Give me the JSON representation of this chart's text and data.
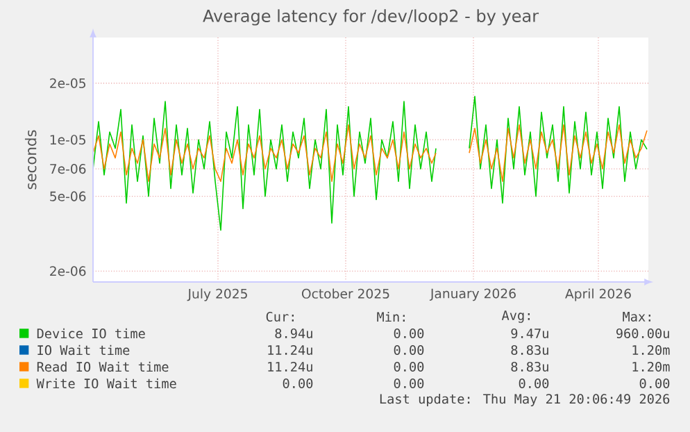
{
  "chart_data": {
    "type": "line",
    "title": "Average latency for /dev/loop2 - by year",
    "ylabel": "seconds",
    "log": true,
    "grid": true,
    "legend": "bottom",
    "marker": "none",
    "line_style": "solid",
    "xlim": [
      "2025-04-17",
      "2026-05-22"
    ],
    "ylim": [
      1.75e-06,
      3.5e-05
    ],
    "xticks": [
      {
        "value": "2025-07-16",
        "label": "July 2025"
      },
      {
        "value": "2025-10-16",
        "label": "October 2025"
      },
      {
        "value": "2026-01-16",
        "label": "January 2026"
      },
      {
        "value": "2026-04-16",
        "label": "April 2026"
      }
    ],
    "yticks": [
      {
        "value": 2e-06,
        "label": "2e-06"
      },
      {
        "value": 5e-06,
        "label": "5e-06"
      },
      {
        "value": 7e-06,
        "label": "7e-06"
      },
      {
        "value": 1e-05,
        "label": "1e-05"
      },
      {
        "value": 2e-05,
        "label": "2e-05"
      }
    ],
    "x": [
      "2025-04-17",
      "2025-04-21",
      "2025-04-25",
      "2025-04-29",
      "2025-05-03",
      "2025-05-07",
      "2025-05-11",
      "2025-05-15",
      "2025-05-19",
      "2025-05-23",
      "2025-05-27",
      "2025-05-31",
      "2025-06-04",
      "2025-06-08",
      "2025-06-12",
      "2025-06-16",
      "2025-06-20",
      "2025-06-24",
      "2025-06-28",
      "2025-07-02",
      "2025-07-06",
      "2025-07-10",
      "2025-07-14",
      "2025-07-18",
      "2025-07-22",
      "2025-07-26",
      "2025-07-30",
      "2025-08-03",
      "2025-08-07",
      "2025-08-11",
      "2025-08-15",
      "2025-08-19",
      "2025-08-23",
      "2025-08-27",
      "2025-08-31",
      "2025-09-04",
      "2025-09-08",
      "2025-09-12",
      "2025-09-16",
      "2025-09-20",
      "2025-09-24",
      "2025-09-28",
      "2025-10-02",
      "2025-10-06",
      "2025-10-10",
      "2025-10-14",
      "2025-10-18",
      "2025-10-22",
      "2025-10-26",
      "2025-10-30",
      "2025-11-03",
      "2025-11-07",
      "2025-11-11",
      "2025-11-15",
      "2025-11-19",
      "2025-11-23",
      "2025-11-27",
      "2025-12-01",
      "2025-12-05",
      "2025-12-09",
      "2025-12-13",
      "2025-12-17",
      "2025-12-20",
      "2026-01-01",
      "2026-01-13",
      "2026-01-17",
      "2026-01-21",
      "2026-01-25",
      "2026-01-29",
      "2026-02-02",
      "2026-02-06",
      "2026-02-10",
      "2026-02-14",
      "2026-02-18",
      "2026-02-22",
      "2026-02-26",
      "2026-03-02",
      "2026-03-06",
      "2026-03-10",
      "2026-03-14",
      "2026-03-18",
      "2026-03-22",
      "2026-03-26",
      "2026-03-30",
      "2026-04-03",
      "2026-04-07",
      "2026-04-11",
      "2026-04-15",
      "2026-04-19",
      "2026-04-23",
      "2026-04-27",
      "2026-05-01",
      "2026-05-05",
      "2026-05-09",
      "2026-05-13",
      "2026-05-17",
      "2026-05-21"
    ],
    "series": [
      {
        "name": "Device IO time",
        "color": "#00cc00",
        "values": [
          7e-06,
          1.25e-05,
          6.5e-06,
          1.1e-05,
          9e-06,
          1.45e-05,
          4.6e-06,
          1.2e-05,
          6e-06,
          1.05e-05,
          5e-06,
          1.3e-05,
          7.5e-06,
          1.6e-05,
          5.5e-06,
          1.2e-05,
          6.5e-06,
          1.15e-05,
          5.2e-06,
          1e-05,
          7e-06,
          1.25e-05,
          6e-06,
          3.3e-06,
          1.1e-05,
          8e-06,
          1.5e-05,
          4.3e-06,
          1.2e-05,
          6.5e-06,
          1.45e-05,
          5e-06,
          1e-05,
          7e-06,
          1.2e-05,
          6e-06,
          1.1e-05,
          8e-06,
          1.3e-05,
          5.5e-06,
          1e-05,
          7e-06,
          1.45e-05,
          3.6e-06,
          1.2e-05,
          6.5e-06,
          1.5e-05,
          5e-06,
          1.1e-05,
          7.5e-06,
          1.3e-05,
          4.8e-06,
          1e-05,
          8e-06,
          1.25e-05,
          6e-06,
          1.6e-05,
          5.5e-06,
          1.2e-05,
          7e-06,
          1.1e-05,
          6e-06,
          9e-06,
          null,
          9e-06,
          1.7e-05,
          7e-06,
          1.2e-05,
          5.5e-06,
          1e-05,
          4.6e-06,
          1.3e-05,
          7e-06,
          1.5e-05,
          6.5e-06,
          1.1e-05,
          5e-06,
          1.4e-05,
          8e-06,
          1.2e-05,
          6e-06,
          1.5e-05,
          5.2e-06,
          1.25e-05,
          7e-06,
          1.4e-05,
          6.5e-06,
          1.1e-05,
          5.5e-06,
          1.3e-05,
          8e-06,
          1.5e-05,
          6e-06,
          1.1e-05,
          7e-06,
          1e-05,
          8.9e-06
        ]
      },
      {
        "name": "IO Wait time",
        "color": "#0066b3",
        "values": [
          null,
          null,
          null,
          null,
          null,
          null,
          null,
          null,
          null,
          null,
          null,
          null,
          null,
          null,
          null,
          null,
          null,
          null,
          null,
          null,
          null,
          null,
          null,
          null,
          null,
          null,
          null,
          null,
          null,
          null,
          null,
          null,
          null,
          null,
          null,
          null,
          null,
          null,
          null,
          null,
          null,
          null,
          null,
          null,
          null,
          null,
          null,
          null,
          null,
          null,
          null,
          null,
          null,
          null,
          null,
          null,
          null,
          null,
          null,
          null,
          null,
          null,
          null,
          null,
          null,
          null,
          null,
          null,
          null,
          null,
          null,
          null,
          null,
          null,
          null,
          null,
          null,
          null,
          null,
          null,
          null,
          null,
          null,
          null,
          null,
          null,
          null,
          null,
          null,
          null,
          null,
          null,
          null,
          null,
          null,
          null,
          null
        ]
      },
      {
        "name": "Read IO Wait time",
        "color": "#ff8000",
        "values": [
          8.5e-06,
          1.05e-05,
          7e-06,
          9.5e-06,
          8e-06,
          1.1e-05,
          6.5e-06,
          9e-06,
          7.5e-06,
          1e-05,
          6e-06,
          9.5e-06,
          8e-06,
          1.15e-05,
          6.5e-06,
          1e-05,
          7.5e-06,
          9.5e-06,
          7e-06,
          9e-06,
          8e-06,
          1.05e-05,
          7e-06,
          6e-06,
          9e-06,
          7.5e-06,
          1e-05,
          6.5e-06,
          9.5e-06,
          8e-06,
          1.05e-05,
          7e-06,
          9e-06,
          8e-06,
          1e-05,
          7e-06,
          9.5e-06,
          8.5e-06,
          1.05e-05,
          6.5e-06,
          9e-06,
          8e-06,
          1.1e-05,
          6e-06,
          9.5e-06,
          7.5e-06,
          1.2e-05,
          7e-06,
          9.5e-06,
          8e-06,
          1.05e-05,
          6.5e-06,
          9e-06,
          8e-06,
          1e-05,
          7e-06,
          1.1e-05,
          7e-06,
          9.5e-06,
          8e-06,
          9e-06,
          7.5e-06,
          8.5e-06,
          null,
          8.5e-06,
          1.15e-05,
          7.5e-06,
          1e-05,
          7e-06,
          9e-06,
          6e-06,
          1.15e-05,
          8e-06,
          1.2e-05,
          7.5e-06,
          1e-05,
          7e-06,
          1.1e-05,
          8.5e-06,
          1e-05,
          7e-06,
          1.2e-05,
          6.5e-06,
          1.05e-05,
          8e-06,
          1.1e-05,
          7.5e-06,
          9.5e-06,
          7e-06,
          1.1e-05,
          8.5e-06,
          1.2e-05,
          7.5e-06,
          1e-05,
          8e-06,
          9e-06,
          1.12e-05
        ]
      },
      {
        "name": "Write IO Wait time",
        "color": "#ffcc00",
        "values": [
          null,
          null,
          null,
          null,
          null,
          null,
          null,
          null,
          null,
          null,
          null,
          null,
          null,
          null,
          null,
          null,
          null,
          null,
          null,
          null,
          null,
          null,
          null,
          null,
          null,
          null,
          null,
          null,
          null,
          null,
          null,
          null,
          null,
          null,
          null,
          null,
          null,
          null,
          null,
          null,
          null,
          null,
          null,
          null,
          null,
          null,
          null,
          null,
          null,
          null,
          null,
          null,
          null,
          null,
          null,
          null,
          null,
          null,
          null,
          null,
          null,
          null,
          null,
          null,
          null,
          null,
          null,
          null,
          null,
          null,
          null,
          null,
          null,
          null,
          null,
          null,
          null,
          null,
          null,
          null,
          null,
          null,
          null,
          null,
          null,
          null,
          null,
          null,
          null,
          null,
          null,
          null,
          null,
          null,
          null,
          null,
          null
        ]
      }
    ],
    "annotations": [
      "Cur:",
      "Min:",
      "Avg:",
      "Max:",
      "8.94u",
      "0.00",
      "9.47u",
      "960.00u",
      "11.24u",
      "0.00",
      "8.83u",
      "1.20m",
      "11.24u",
      "0.00",
      "8.83u",
      "1.20m",
      "0.00",
      "0.00",
      "0.00",
      "0.00",
      "Last update: Thu May 21 20:06:49 2026"
    ]
  }
}
